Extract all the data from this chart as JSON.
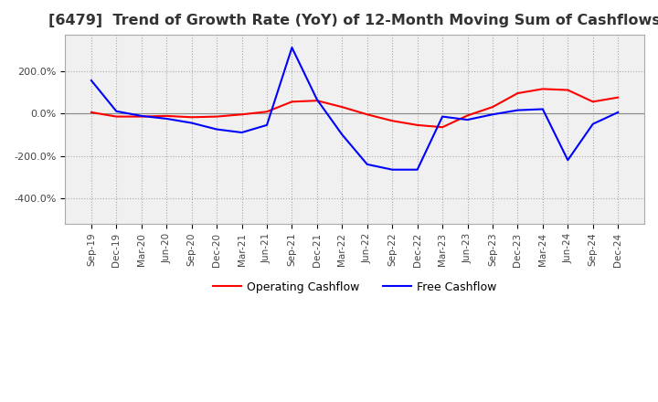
{
  "title": "[6479]  Trend of Growth Rate (YoY) of 12-Month Moving Sum of Cashflows",
  "title_fontsize": 11.5,
  "ylim": [
    -520,
    370
  ],
  "yticks": [
    200,
    0,
    -200,
    -400
  ],
  "ytick_labels": [
    "200.0%",
    "0.0%",
    "-200.0%",
    "-400.0%"
  ],
  "legend_labels": [
    "Operating Cashflow",
    "Free Cashflow"
  ],
  "legend_colors": [
    "#ff0000",
    "#0000ff"
  ],
  "background_color": "#ffffff",
  "plot_bg_color": "#f0f0f0",
  "x_labels": [
    "Sep-19",
    "Dec-19",
    "Mar-20",
    "Jun-20",
    "Sep-20",
    "Dec-20",
    "Mar-21",
    "Jun-21",
    "Sep-21",
    "Dec-21",
    "Mar-22",
    "Jun-22",
    "Sep-22",
    "Dec-22",
    "Mar-23",
    "Jun-23",
    "Sep-23",
    "Dec-23",
    "Mar-24",
    "Jun-24",
    "Sep-24",
    "Dec-24"
  ],
  "operating_cashflow": [
    5,
    -15,
    -15,
    -12,
    -18,
    -15,
    -5,
    8,
    55,
    60,
    30,
    -5,
    -35,
    -55,
    -65,
    -10,
    30,
    95,
    115,
    110,
    55,
    75
  ],
  "free_cashflow": [
    155,
    10,
    -12,
    -25,
    -45,
    -75,
    -90,
    -55,
    310,
    65,
    -100,
    -240,
    -265,
    -265,
    -15,
    -30,
    -5,
    15,
    20,
    -220,
    -50,
    5
  ]
}
